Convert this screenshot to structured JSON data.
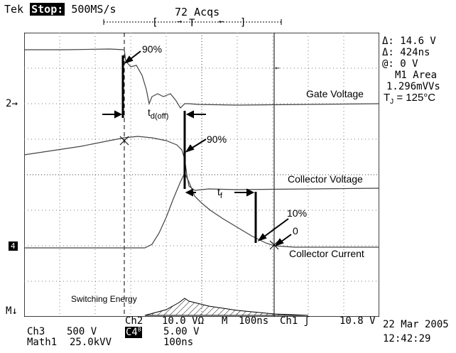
{
  "header": {
    "brand": "Tek",
    "state": "Stop:",
    "sample_rate": "500MS/s",
    "acquisitions": "72 Acqs",
    "trigger_marker": "T"
  },
  "measurements": {
    "delta_v": "Δ: 14.6 V",
    "delta_t": "Δ: 424ns",
    "at_v": "@: 0 V",
    "area_label": "M1 Area",
    "area_value": "1.296mVVs",
    "tj": "T",
    "tj_sub": "J",
    "tj_value": " = 125°C"
  },
  "screen_labels": {
    "ch2_marker": "2",
    "ch_ref_marker": "4",
    "math_marker": "M",
    "gate_voltage": "Gate Voltage",
    "collector_voltage": "Collector Voltage",
    "collector_current": "Collector Current",
    "switching_energy": "Switching Energy",
    "p90_gate": "90%",
    "p90_collector": "90%",
    "p10": "10%",
    "zero": "0",
    "td_main": "t",
    "td_sub": "d(off)",
    "tf_main": "t",
    "tf_sub": "f"
  },
  "status": {
    "ch3_label": "Ch3",
    "ch3_scale": "500 V",
    "ch2_label": "Ch2",
    "ch2_scale": "10.0 VΩ",
    "ch4_label": "C4",
    "ch4_sup": "B",
    "ch4_scale": "5.00 V",
    "math_label": "Math1",
    "math_scale": "25.0kVV",
    "math_time": "100ns",
    "horiz_mode": "M",
    "timebase": "100ns",
    "trig_src": "Ch1",
    "trig_slope": "ʃ",
    "trig_level": "10.8 V",
    "date": "22 Mar 2005",
    "time": "12:42:29"
  }
}
